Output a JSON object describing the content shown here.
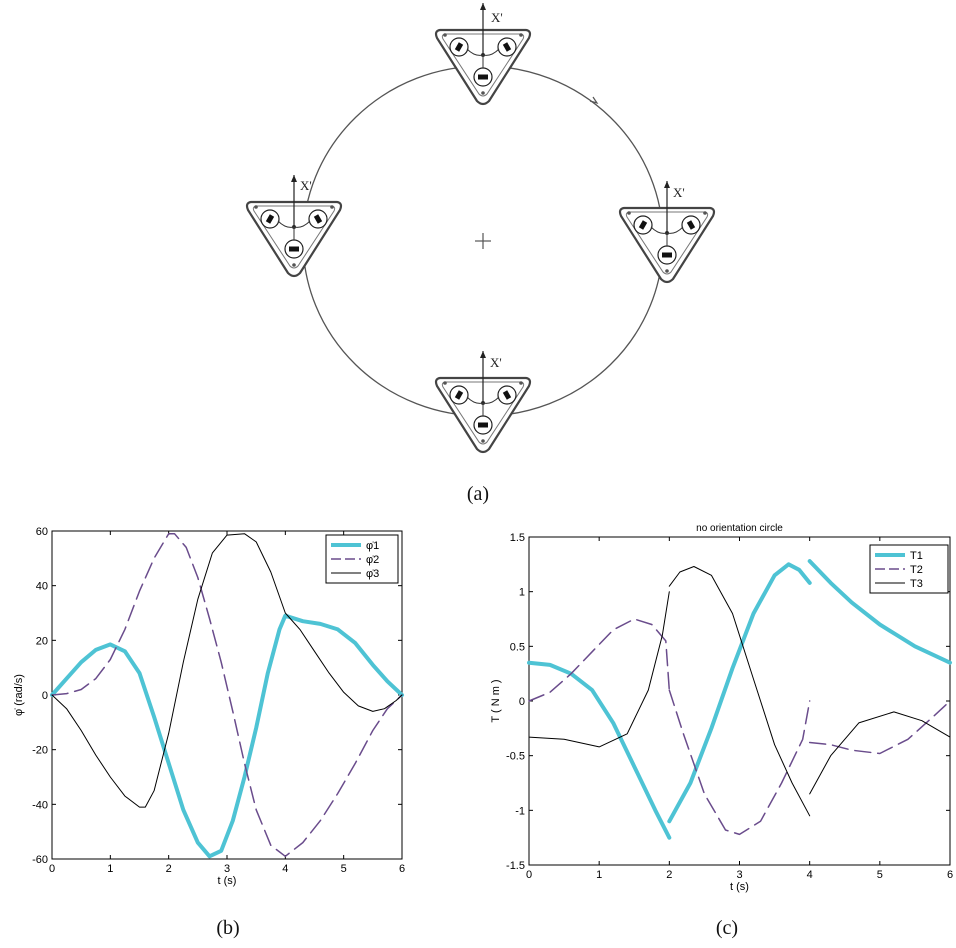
{
  "figure_a": {
    "caption": "(a)",
    "axis_label": "X'",
    "robots": [
      "top",
      "right",
      "bottom",
      "left"
    ]
  },
  "captions": {
    "b": "(b)",
    "c": "(c)"
  },
  "chart_data": [
    {
      "id": "b",
      "type": "line",
      "title": "",
      "xlabel": "t (s)",
      "ylabel": "φ̇ (rad/s)",
      "xlim": [
        0,
        6
      ],
      "ylim": [
        -60,
        60
      ],
      "xticks": [
        0,
        1,
        2,
        3,
        4,
        5,
        6
      ],
      "yticks": [
        -60,
        -40,
        -20,
        0,
        20,
        40,
        60
      ],
      "legend": {
        "placement": "top-right"
      },
      "series": [
        {
          "name": "φ̇1",
          "color": "#4ec3d4",
          "style": "thick-solid",
          "x": [
            0,
            0.25,
            0.5,
            0.75,
            1.0,
            1.25,
            1.5,
            1.75,
            2.0,
            2.25,
            2.5,
            2.7,
            2.9,
            3.1,
            3.3,
            3.5,
            3.7,
            3.9,
            4.0,
            4.3,
            4.6,
            4.9,
            5.2,
            5.5,
            5.75,
            6.0
          ],
          "y": [
            0,
            6,
            12,
            16.5,
            18.5,
            16,
            8,
            -8,
            -25,
            -42,
            -54,
            -59,
            -57,
            -46,
            -30,
            -12,
            8,
            24,
            29,
            27,
            26,
            24,
            19,
            11,
            5,
            0
          ]
        },
        {
          "name": "φ̇2",
          "color": "#6a4c8c",
          "style": "long-dash",
          "x": [
            0,
            0.25,
            0.5,
            0.75,
            1.0,
            1.25,
            1.5,
            1.75,
            2.0,
            2.1,
            2.3,
            2.5,
            2.7,
            2.9,
            3.1,
            3.3,
            3.5,
            3.75,
            4.0,
            4.3,
            4.6,
            4.9,
            5.2,
            5.5,
            5.75,
            6.0
          ],
          "y": [
            0,
            0.5,
            2,
            6,
            13,
            24,
            38,
            50,
            59,
            59,
            54,
            43,
            28,
            12,
            -6,
            -25,
            -42,
            -55,
            -59,
            -54,
            -46,
            -36,
            -25,
            -13,
            -5,
            0
          ]
        },
        {
          "name": "φ̇3",
          "color": "#000000",
          "style": "thin-solid",
          "x": [
            0,
            0.25,
            0.5,
            0.75,
            1.0,
            1.25,
            1.5,
            1.6,
            1.75,
            2.0,
            2.25,
            2.5,
            2.75,
            3.0,
            3.3,
            3.5,
            3.75,
            4.0,
            4.25,
            4.5,
            4.75,
            5.0,
            5.25,
            5.5,
            5.7,
            5.9,
            6.0
          ],
          "y": [
            0,
            -5,
            -13,
            -22,
            -30,
            -37,
            -41,
            -41,
            -35,
            -14,
            12,
            35,
            52,
            58.5,
            59,
            56,
            45,
            30,
            24,
            16,
            8,
            1,
            -4,
            -6,
            -5,
            -2,
            0
          ]
        }
      ]
    },
    {
      "id": "c",
      "type": "line",
      "title": "no orientation circle",
      "xlabel": "t (s)",
      "ylabel": "T ( N m     )",
      "xlim": [
        0,
        6
      ],
      "ylim": [
        -1.5,
        1.5
      ],
      "xticks": [
        0,
        1,
        2,
        3,
        4,
        5,
        6
      ],
      "yticks": [
        -1.5,
        -1,
        -0.5,
        0,
        0.5,
        1,
        1.5
      ],
      "legend": {
        "placement": "top-right"
      },
      "series": [
        {
          "name": "T1",
          "color": "#4ec3d4",
          "style": "thick-solid",
          "segments": [
            {
              "x": [
                0,
                0.3,
                0.6,
                0.9,
                1.2,
                1.5,
                1.8,
                2.0
              ],
              "y": [
                0.35,
                0.33,
                0.25,
                0.1,
                -0.2,
                -0.6,
                -1.0,
                -1.25
              ]
            },
            {
              "x": [
                2.0,
                2.3,
                2.6,
                2.9,
                3.2,
                3.5,
                3.7,
                3.85,
                4.0
              ],
              "y": [
                -1.1,
                -0.75,
                -0.25,
                0.3,
                0.8,
                1.15,
                1.25,
                1.2,
                1.08
              ]
            },
            {
              "x": [
                4.0,
                4.3,
                4.6,
                5.0,
                5.5,
                6.0
              ],
              "y": [
                1.28,
                1.08,
                0.9,
                0.7,
                0.5,
                0.35
              ]
            }
          ]
        },
        {
          "name": "T2",
          "color": "#6a4c8c",
          "style": "long-dash",
          "segments": [
            {
              "x": [
                0,
                0.3,
                0.6,
                0.9,
                1.2,
                1.5,
                1.75,
                1.95,
                2.0
              ],
              "y": [
                0,
                0.08,
                0.25,
                0.45,
                0.65,
                0.75,
                0.7,
                0.55,
                0.1
              ]
            },
            {
              "x": [
                2.0,
                2.2,
                2.5,
                2.8,
                3.0,
                3.3,
                3.6,
                3.9,
                4.0
              ],
              "y": [
                0.1,
                -0.3,
                -0.85,
                -1.18,
                -1.22,
                -1.1,
                -0.75,
                -0.35,
                0.0
              ]
            },
            {
              "x": [
                4.0,
                4.3,
                4.6,
                5.0,
                5.4,
                5.8,
                6.0
              ],
              "y": [
                -0.38,
                -0.4,
                -0.45,
                -0.48,
                -0.35,
                -0.12,
                0.0
              ]
            }
          ]
        },
        {
          "name": "T3",
          "color": "#000000",
          "style": "thin-solid",
          "segments": [
            {
              "x": [
                0,
                0.5,
                1.0,
                1.4,
                1.7,
                1.9,
                2.0
              ],
              "y": [
                -0.33,
                -0.35,
                -0.42,
                -0.3,
                0.1,
                0.6,
                1.0
              ]
            },
            {
              "x": [
                2.0,
                2.15,
                2.35,
                2.6,
                2.9,
                3.2,
                3.5,
                3.75,
                4.0
              ],
              "y": [
                1.05,
                1.18,
                1.23,
                1.15,
                0.8,
                0.2,
                -0.4,
                -0.75,
                -1.05
              ]
            },
            {
              "x": [
                4.0,
                4.3,
                4.7,
                5.2,
                5.6,
                6.0
              ],
              "y": [
                -0.85,
                -0.5,
                -0.2,
                -0.1,
                -0.18,
                -0.33
              ]
            }
          ]
        }
      ]
    }
  ]
}
